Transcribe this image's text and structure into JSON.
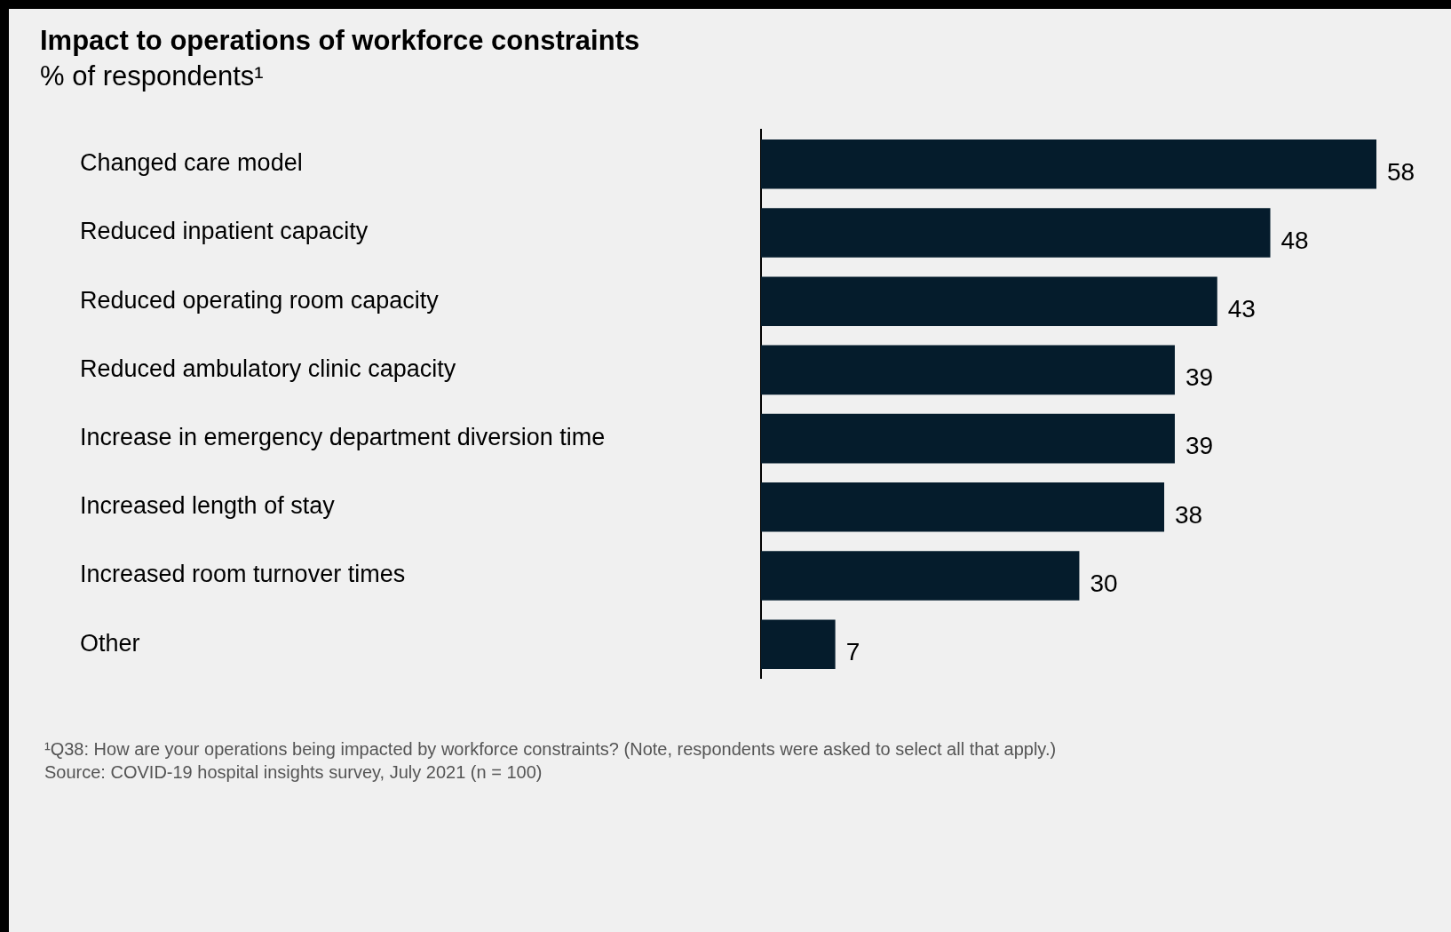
{
  "chart_data": {
    "type": "bar",
    "orientation": "horizontal",
    "title": "Impact to operations of workforce constraints",
    "subtitle": "% of respondents¹",
    "categories": [
      "Changed care model",
      "Reduced inpatient capacity",
      "Reduced operating room capacity",
      "Reduced ambulatory clinic capacity",
      "Increase in emergency department diversion time",
      "Increased length of stay",
      "Increased room turnover times",
      "Other"
    ],
    "values": [
      58,
      48,
      43,
      39,
      39,
      38,
      30,
      7
    ],
    "color": "#051c2c",
    "data_labels": true,
    "grid": false,
    "legend": false,
    "tick_labels": "y",
    "annotations": [
      "¹Q38: How are your operations being impacted by workforce constraints? (Note, respondents were asked to select all that apply.)",
      "Source: COVID-19 hospital insights survey, July 2021 (n = 100)"
    ]
  }
}
